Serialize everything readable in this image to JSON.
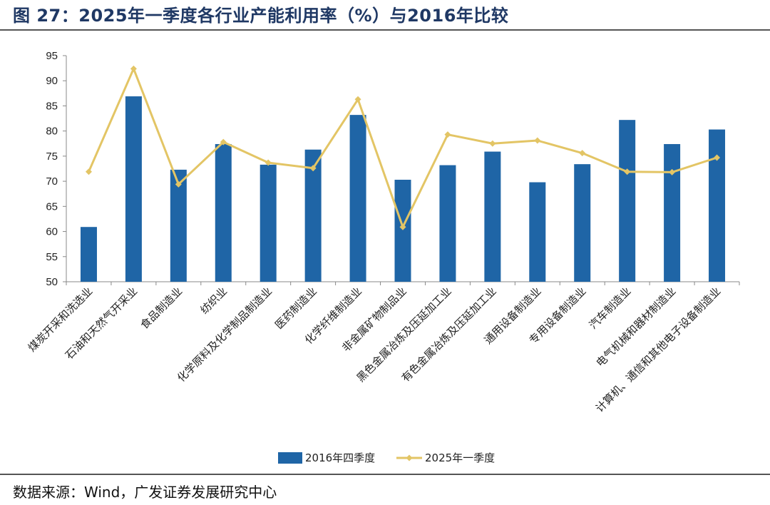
{
  "title": "图 27：2025年一季度各行业产能利用率（%）与2016年比较",
  "source": "数据来源：Wind，广发证券发展研究中心",
  "colors": {
    "bar": "#1f65a6",
    "line": "#e3c565",
    "title": "#1f3864"
  },
  "chart_data": {
    "type": "bar",
    "categories": [
      "煤炭开采和洗选业",
      "石油和天然气开采业",
      "食品制造业",
      "纺织业",
      "化学原料及化学制品制造业",
      "医药制造业",
      "化学纤维制造业",
      "非金属矿物制品业",
      "黑色金属冶炼及压延加工业",
      "有色金属冶炼及压延加工业",
      "通用设备制造业",
      "专用设备制造业",
      "汽车制造业",
      "电气机械和器材制造业",
      "计算机、通信和其他电子设备制造业"
    ],
    "series": [
      {
        "name": "2016年四季度",
        "type": "bar",
        "values": [
          60.9,
          86.9,
          72.3,
          77.4,
          73.3,
          76.3,
          83.2,
          70.3,
          73.2,
          75.9,
          69.8,
          73.4,
          82.2,
          77.4,
          80.3
        ]
      },
      {
        "name": "2025年一季度",
        "type": "line",
        "values": [
          71.9,
          92.4,
          69.4,
          77.8,
          73.7,
          72.6,
          86.3,
          60.9,
          79.3,
          77.5,
          78.1,
          75.6,
          71.9,
          71.8,
          74.7
        ]
      }
    ],
    "ylim": [
      50,
      95
    ],
    "yticks": [
      50,
      55,
      60,
      65,
      70,
      75,
      80,
      85,
      90,
      95
    ],
    "legend": "bottom",
    "grid": false
  }
}
